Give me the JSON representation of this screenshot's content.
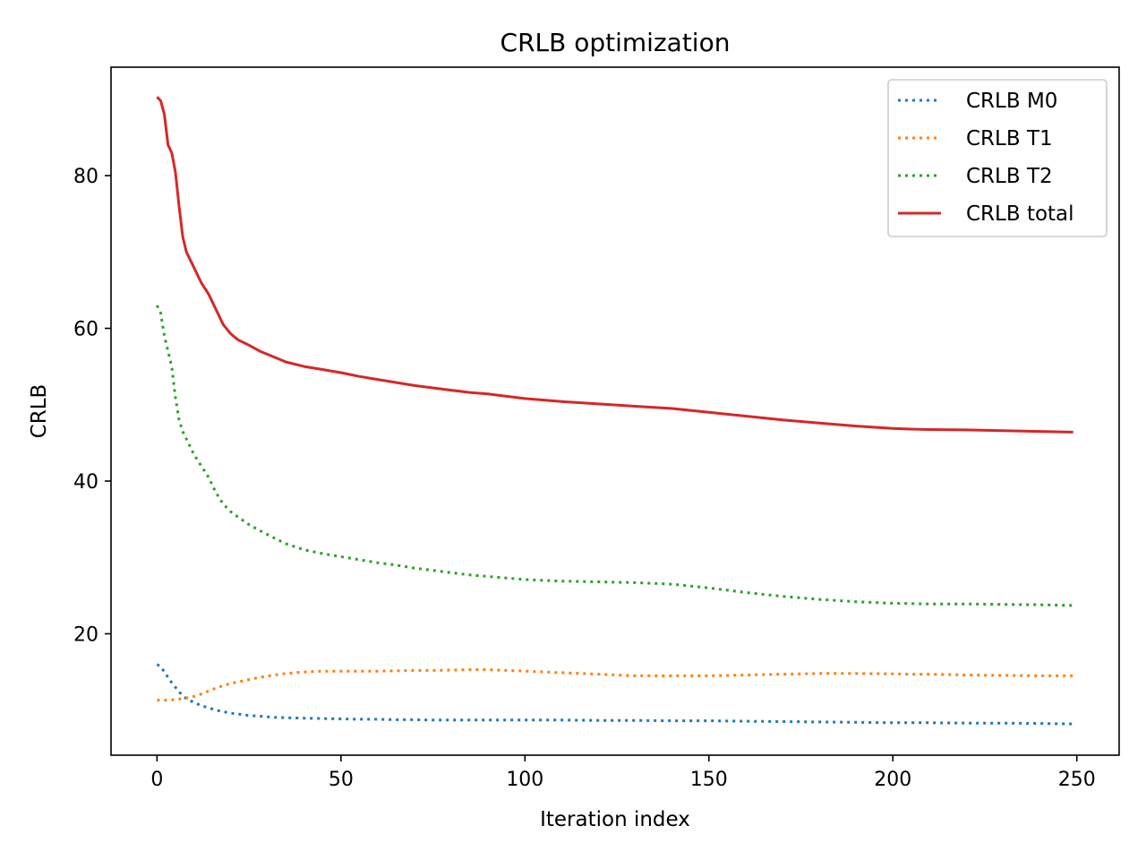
{
  "chart_data": {
    "type": "line",
    "title": "CRLB optimization",
    "xlabel": "Iteration index",
    "ylabel": "CRLB",
    "xlim": [
      -12.5,
      261.5
    ],
    "ylim": [
      4.1,
      94.2
    ],
    "xticks": [
      0,
      50,
      100,
      150,
      200,
      250
    ],
    "yticks": [
      20,
      40,
      60,
      80
    ],
    "grid": false,
    "legend_position": "top-right",
    "x": [
      0,
      1,
      2,
      3,
      4,
      5,
      6,
      7,
      8,
      10,
      12,
      14,
      16,
      18,
      20,
      22,
      25,
      28,
      32,
      35,
      40,
      45,
      50,
      55,
      60,
      65,
      70,
      75,
      80,
      85,
      90,
      95,
      100,
      110,
      120,
      130,
      140,
      150,
      160,
      170,
      180,
      190,
      200,
      205,
      210,
      220,
      230,
      240,
      249
    ],
    "series": [
      {
        "name": "CRLB M0",
        "color": "#1f77b4",
        "dash": "dotted",
        "values": [
          16.0,
          15.7,
          15.0,
          14.3,
          13.6,
          13.0,
          12.4,
          11.9,
          11.5,
          11.0,
          10.6,
          10.3,
          10.0,
          9.8,
          9.6,
          9.5,
          9.3,
          9.2,
          9.05,
          9.0,
          8.95,
          8.9,
          8.85,
          8.8,
          8.8,
          8.75,
          8.75,
          8.7,
          8.7,
          8.7,
          8.7,
          8.7,
          8.7,
          8.7,
          8.65,
          8.65,
          8.6,
          8.6,
          8.55,
          8.5,
          8.45,
          8.4,
          8.35,
          8.35,
          8.35,
          8.3,
          8.3,
          8.25,
          8.2
        ]
      },
      {
        "name": "CRLB T1",
        "color": "#ff7f0e",
        "dash": "dotted",
        "values": [
          11.3,
          11.3,
          11.3,
          11.3,
          11.35,
          11.4,
          11.45,
          11.5,
          11.6,
          11.8,
          12.1,
          12.5,
          12.9,
          13.2,
          13.5,
          13.7,
          14.0,
          14.3,
          14.6,
          14.8,
          15.0,
          15.1,
          15.1,
          15.1,
          15.1,
          15.15,
          15.2,
          15.2,
          15.25,
          15.3,
          15.3,
          15.2,
          15.1,
          14.9,
          14.7,
          14.5,
          14.5,
          14.5,
          14.6,
          14.7,
          14.8,
          14.8,
          14.75,
          14.7,
          14.7,
          14.6,
          14.55,
          14.5,
          14.5
        ]
      },
      {
        "name": "CRLB T2",
        "color": "#2ca02c",
        "dash": "dotted",
        "values": [
          63.0,
          62.0,
          59.0,
          57.0,
          55.0,
          51.0,
          48.0,
          46.5,
          45.5,
          43.5,
          42.0,
          40.5,
          38.5,
          37.0,
          36.0,
          35.3,
          34.3,
          33.5,
          32.5,
          31.8,
          31.0,
          30.5,
          30.1,
          29.7,
          29.3,
          29.0,
          28.6,
          28.3,
          28.0,
          27.7,
          27.5,
          27.3,
          27.1,
          26.9,
          26.8,
          26.7,
          26.5,
          26.0,
          25.4,
          24.9,
          24.5,
          24.2,
          24.0,
          23.95,
          23.9,
          23.9,
          23.85,
          23.8,
          23.7
        ]
      },
      {
        "name": "CRLB total",
        "color": "#d62728",
        "dash": "solid",
        "values": [
          90.3,
          89.8,
          88.0,
          84.0,
          83.0,
          80.5,
          76.0,
          72.0,
          70.0,
          68.0,
          66.0,
          64.5,
          62.5,
          60.5,
          59.3,
          58.5,
          57.8,
          57.0,
          56.2,
          55.6,
          55.0,
          54.6,
          54.2,
          53.7,
          53.3,
          52.9,
          52.5,
          52.2,
          51.9,
          51.6,
          51.4,
          51.1,
          50.8,
          50.4,
          50.1,
          49.8,
          49.5,
          49.0,
          48.5,
          48.0,
          47.6,
          47.2,
          46.9,
          46.8,
          46.75,
          46.7,
          46.6,
          46.5,
          46.4
        ]
      }
    ]
  }
}
